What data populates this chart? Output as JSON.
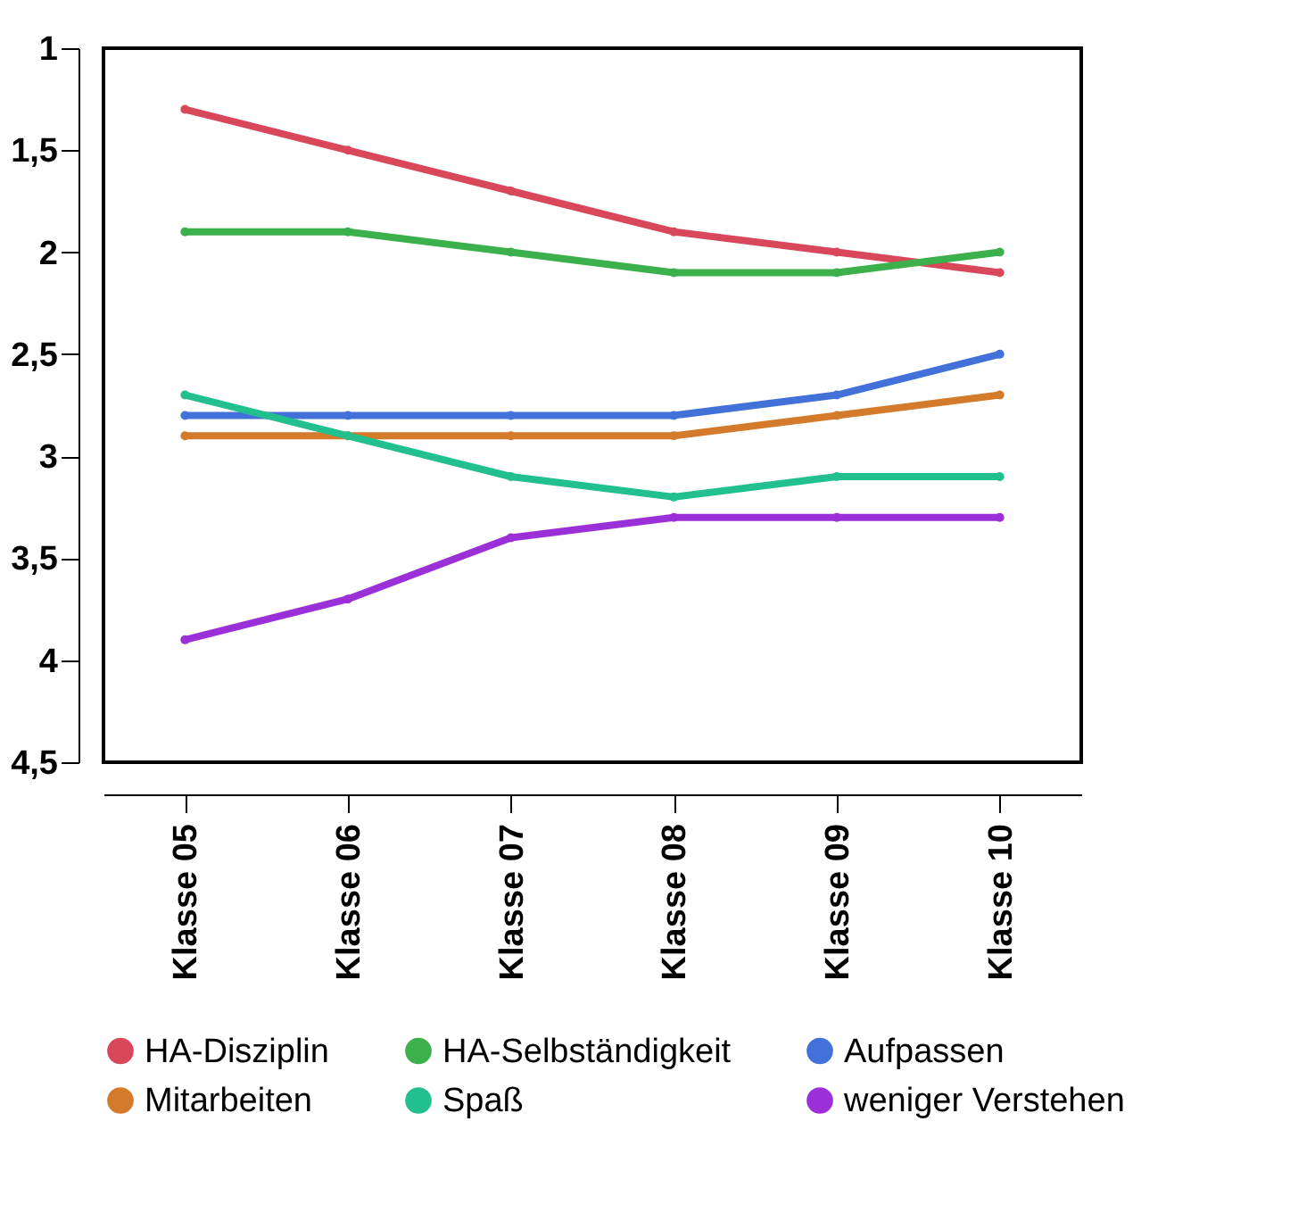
{
  "chart_data": {
    "type": "line",
    "categories": [
      "Klasse 05",
      "Klasse 06",
      "Klasse 07",
      "Klasse 08",
      "Klasse 09",
      "Klasse 10"
    ],
    "series": [
      {
        "name": "HA-Disziplin",
        "color": "#d9475a",
        "values": [
          1.3,
          1.5,
          1.7,
          1.9,
          2.0,
          2.1
        ]
      },
      {
        "name": "HA-Selbständigkeit",
        "color": "#3cb04a",
        "values": [
          1.9,
          1.9,
          2.0,
          2.1,
          2.1,
          2.0
        ]
      },
      {
        "name": "Aufpassen",
        "color": "#4272d9",
        "values": [
          2.8,
          2.8,
          2.8,
          2.8,
          2.7,
          2.5
        ]
      },
      {
        "name": "Mitarbeiten",
        "color": "#d47a2b",
        "values": [
          2.9,
          2.9,
          2.9,
          2.9,
          2.8,
          2.7
        ]
      },
      {
        "name": "Spaß",
        "color": "#22bf8f",
        "values": [
          2.7,
          2.9,
          3.1,
          3.2,
          3.1,
          3.1
        ]
      },
      {
        "name": "weniger Verstehen",
        "color": "#9b30d9",
        "values": [
          3.9,
          3.7,
          3.4,
          3.3,
          3.3,
          3.3
        ]
      }
    ],
    "ylim": [
      4.5,
      1
    ],
    "yticks": [
      1,
      {
        "value": 1.5,
        "label": "1,5"
      },
      2,
      {
        "value": 2.5,
        "label": "2,5"
      },
      3,
      {
        "value": 3.5,
        "label": "3,5"
      },
      4,
      {
        "value": 4.5,
        "label": "4,5"
      }
    ],
    "grid": false,
    "legend": "bottom",
    "marker": "circle",
    "line_style": "solid"
  }
}
